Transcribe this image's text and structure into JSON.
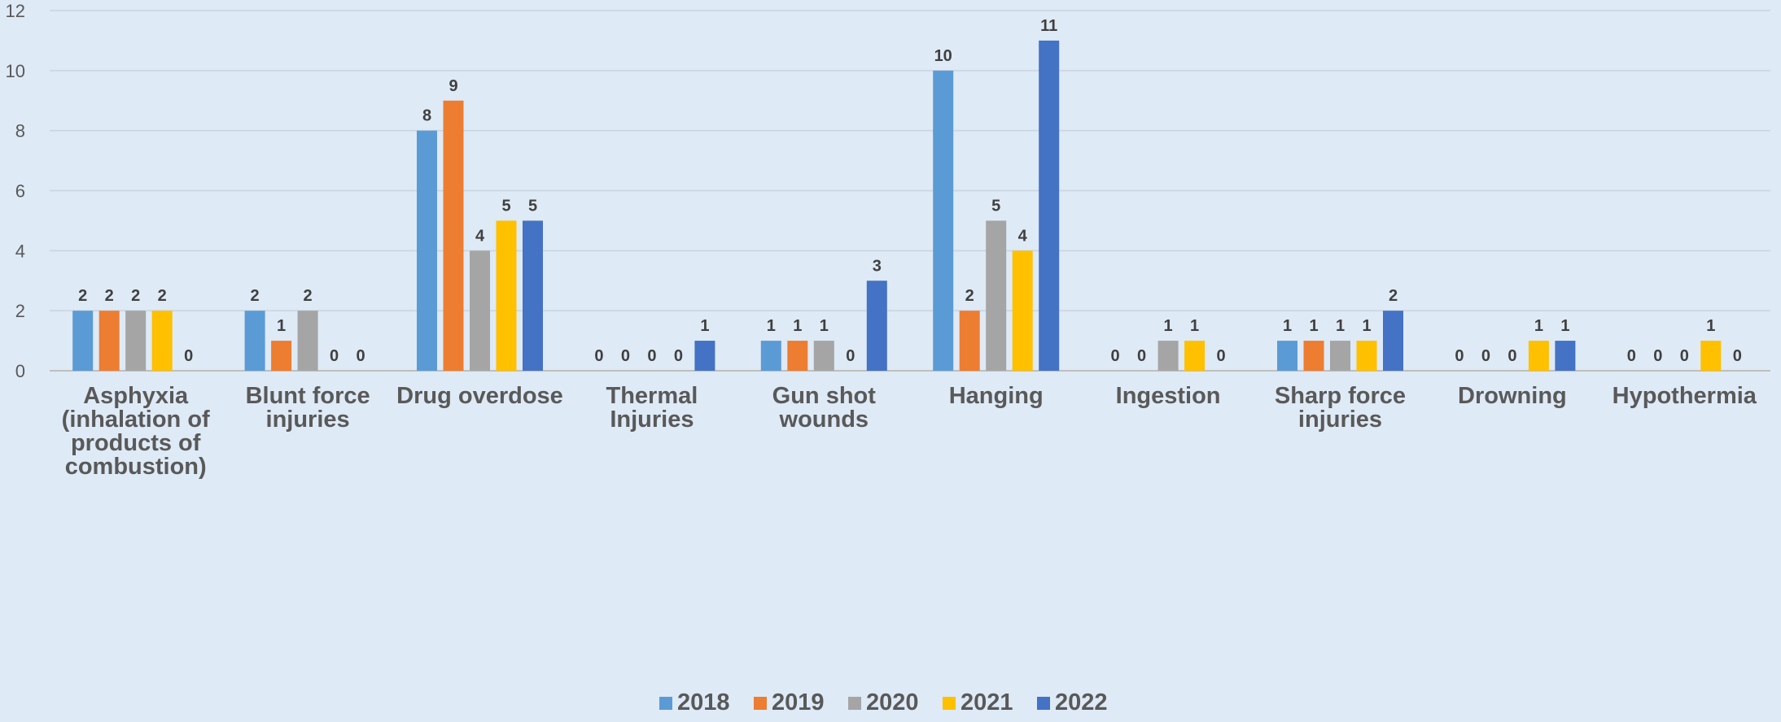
{
  "chart_data": {
    "type": "bar",
    "categories": [
      [
        "Asphyxia",
        "(inhalation of",
        "products of",
        "combustion)"
      ],
      [
        "Blunt force",
        "injuries"
      ],
      [
        "Drug overdose"
      ],
      [
        "Thermal",
        "Injuries"
      ],
      [
        "Gun shot",
        "wounds"
      ],
      [
        "Hanging"
      ],
      [
        "Ingestion"
      ],
      [
        "Sharp force",
        "injuries"
      ],
      [
        "Drowning"
      ],
      [
        "Hypothermia"
      ]
    ],
    "series": [
      {
        "name": "2018",
        "color": "#5b9bd5",
        "values": [
          2,
          2,
          8,
          0,
          1,
          10,
          0,
          1,
          0,
          0
        ]
      },
      {
        "name": "2019",
        "color": "#ed7d31",
        "values": [
          2,
          1,
          9,
          0,
          1,
          2,
          0,
          1,
          0,
          0
        ]
      },
      {
        "name": "2020",
        "color": "#a5a5a5",
        "values": [
          2,
          2,
          4,
          0,
          1,
          5,
          1,
          1,
          0,
          0
        ]
      },
      {
        "name": "2021",
        "color": "#ffc000",
        "values": [
          2,
          0,
          5,
          0,
          0,
          4,
          1,
          1,
          1,
          1
        ]
      },
      {
        "name": "2022",
        "color": "#4472c4",
        "values": [
          0,
          0,
          5,
          1,
          3,
          11,
          0,
          2,
          1,
          0
        ]
      }
    ],
    "yticks": [
      "0",
      "2",
      "4",
      "6",
      "8",
      "10",
      "12"
    ],
    "ylim": [
      0,
      12
    ],
    "grid": true,
    "legend_position": "bottom"
  }
}
